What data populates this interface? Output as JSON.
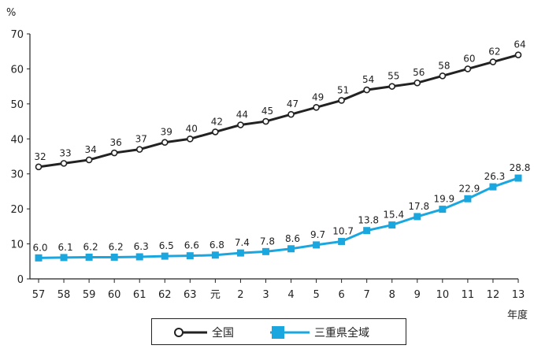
{
  "chart_data": {
    "type": "line",
    "ylabel": "%",
    "xlabel": "年度",
    "ylim": [
      0,
      70
    ],
    "yticks": [
      0,
      10,
      20,
      30,
      40,
      50,
      60,
      70
    ],
    "categories": [
      "57",
      "58",
      "59",
      "60",
      "61",
      "62",
      "63",
      "元",
      "2",
      "3",
      "4",
      "5",
      "6",
      "7",
      "8",
      "9",
      "10",
      "11",
      "12",
      "13"
    ],
    "series": [
      {
        "name": "全国",
        "color": "#222222",
        "marker": "circle",
        "values": [
          32,
          33,
          34,
          36,
          37,
          39,
          40,
          42,
          44,
          45,
          47,
          49,
          51,
          54,
          55,
          56,
          58,
          60,
          62,
          64
        ],
        "labels": [
          "32",
          "33",
          "34",
          "36",
          "37",
          "39",
          "40",
          "42",
          "44",
          "45",
          "47",
          "49",
          "51",
          "54",
          "55",
          "56",
          "58",
          "60",
          "62",
          "64"
        ]
      },
      {
        "name": "三重県全域",
        "color": "#1aa7e0",
        "marker": "square",
        "values": [
          6.0,
          6.1,
          6.2,
          6.2,
          6.3,
          6.5,
          6.6,
          6.8,
          7.4,
          7.8,
          8.6,
          9.7,
          10.7,
          13.8,
          15.4,
          17.8,
          19.9,
          22.9,
          26.3,
          28.8
        ],
        "labels": [
          "6.0",
          "6.1",
          "6.2",
          "6.2",
          "6.3",
          "6.5",
          "6.6",
          "6.8",
          "7.4",
          "7.8",
          "8.6",
          "9.7",
          "10.7",
          "13.8",
          "15.4",
          "17.8",
          "19.9",
          "22.9",
          "26.3",
          "28.8"
        ]
      }
    ],
    "grid": false,
    "legend": "bottom"
  }
}
